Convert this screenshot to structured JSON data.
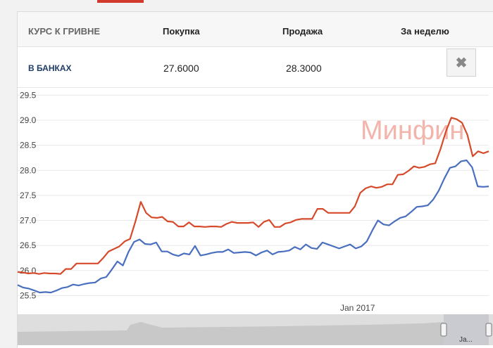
{
  "table": {
    "header": {
      "rate_label": "КУРС К ГРИВНЕ",
      "buy_label": "Покупка",
      "sell_label": "Продажа",
      "week_label": "За неделю"
    },
    "row": {
      "label": "В БАНКАХ",
      "buy": "27.6000",
      "sell": "28.3000"
    },
    "close_icon": "close-icon"
  },
  "chart_data": {
    "type": "line",
    "watermark": "Минфин",
    "ylim": [
      25.4,
      29.6
    ],
    "yticks": [
      "29.5",
      "29.0",
      "28.5",
      "28.0",
      "27.5",
      "27.0",
      "26.5",
      "26.0",
      "25.5"
    ],
    "xtick_label": "Jan 2017",
    "navigator_label": "Ja...",
    "grid": true,
    "series": [
      {
        "color": "#d64a2b",
        "values": [
          25.97,
          25.96,
          25.94,
          25.95,
          25.93,
          25.95,
          25.94,
          25.94,
          25.93,
          26.03,
          26.03,
          26.14,
          26.14,
          26.14,
          26.14,
          26.14,
          26.25,
          26.38,
          26.43,
          26.48,
          26.58,
          26.63,
          26.98,
          27.37,
          27.15,
          27.06,
          27.05,
          27.07,
          26.98,
          26.97,
          26.88,
          26.88,
          26.96,
          26.88,
          26.88,
          26.87,
          26.88,
          26.88,
          26.87,
          26.93,
          26.97,
          26.95,
          26.95,
          26.95,
          26.96,
          26.87,
          26.97,
          27.01,
          26.87,
          26.87,
          26.94,
          26.96,
          27.01,
          27.03,
          27.03,
          27.03,
          27.23,
          27.23,
          27.15,
          27.15,
          27.15,
          27.15,
          27.15,
          27.28,
          27.55,
          27.64,
          27.68,
          27.65,
          27.67,
          27.72,
          27.72,
          27.91,
          27.92,
          27.99,
          28.08,
          28.05,
          28.07,
          28.12,
          28.14,
          28.43,
          28.78,
          29.05,
          29.02,
          28.95,
          28.71,
          28.28,
          28.38,
          28.34,
          28.38
        ]
      },
      {
        "color": "#4a6fbf",
        "values": [
          25.71,
          25.66,
          25.64,
          25.6,
          25.56,
          25.57,
          25.56,
          25.6,
          25.65,
          25.67,
          25.72,
          25.7,
          25.73,
          25.75,
          25.76,
          25.84,
          25.87,
          26.02,
          26.18,
          26.1,
          26.37,
          26.57,
          26.62,
          26.53,
          26.52,
          26.56,
          26.38,
          26.38,
          26.32,
          26.29,
          26.34,
          26.32,
          26.49,
          26.3,
          26.32,
          26.35,
          26.37,
          26.37,
          26.42,
          26.35,
          26.36,
          26.37,
          26.36,
          26.3,
          26.36,
          26.4,
          26.32,
          26.37,
          26.38,
          26.4,
          26.47,
          26.42,
          26.52,
          26.45,
          26.43,
          26.56,
          26.52,
          26.48,
          26.44,
          26.48,
          26.52,
          26.44,
          26.48,
          26.58,
          26.8,
          27.0,
          26.92,
          26.9,
          26.98,
          27.05,
          27.08,
          27.17,
          27.27,
          27.28,
          27.3,
          27.42,
          27.6,
          27.84,
          28.05,
          28.08,
          28.18,
          28.2,
          28.06,
          27.68,
          27.67,
          27.68
        ]
      }
    ]
  }
}
